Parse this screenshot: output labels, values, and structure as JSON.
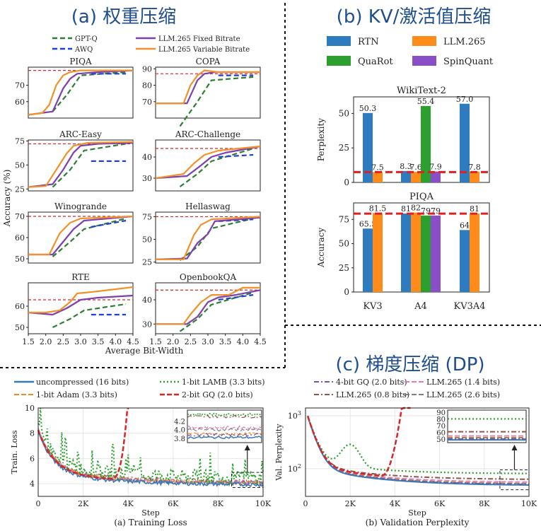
{
  "panels": {
    "a_title": "(a) 权重压缩",
    "b_title": "(b) KV/激活值压缩",
    "c_title": "(c) 梯度压缩 (DP)"
  },
  "colors": {
    "gptq": "#2e7d32",
    "awq": "#1f3fd6",
    "llm_fixed": "#7b3fb0",
    "llm_var": "#f0912a",
    "ref": "#e02020",
    "rtn": "#2f7bbf",
    "quarot": "#2ca02c",
    "spinquant": "#8a4fc7",
    "llm265": "#ff8c1a",
    "title_blue": "#1f4e8c"
  },
  "chart_data": [
    {
      "type": "line",
      "panel": "a",
      "legend": [
        "GPT-Q",
        "AWQ",
        "LLM.265 Fixed Bitrate",
        "LLM.265 Variable Bitrate"
      ],
      "xlabel": "Average Bit-Width",
      "ylabel": "Accuracy (%)",
      "xlim": [
        1.5,
        4.5
      ],
      "xticks": [
        "1.5",
        "2.0",
        "2.5",
        "3.0",
        "3.5",
        "4.0",
        "4.5"
      ],
      "subplots": [
        {
          "title": "PIQA",
          "ylim": [
            50,
            81
          ],
          "yticks": [
            60,
            70
          ],
          "ref": 79,
          "var": [
            [
              1.5,
              52
            ],
            [
              1.9,
              53
            ],
            [
              2.1,
              58
            ],
            [
              2.3,
              70
            ],
            [
              2.5,
              76
            ],
            [
              2.7,
              78
            ],
            [
              3.0,
              79
            ],
            [
              4.5,
              79
            ]
          ],
          "fixed": [
            [
              1.5,
              52
            ],
            [
              2.2,
              54
            ],
            [
              2.5,
              68
            ],
            [
              2.7,
              74
            ],
            [
              2.9,
              77
            ],
            [
              3.5,
              78
            ],
            [
              4.5,
              79
            ]
          ],
          "gptq": [
            [
              2.2,
              54
            ],
            [
              2.6,
              64
            ],
            [
              3.0,
              76
            ],
            [
              4.3,
              78
            ]
          ],
          "awq": [
            [
              3.3,
              77
            ],
            [
              4.3,
              77
            ]
          ]
        },
        {
          "title": "COPA",
          "ylim": [
            60,
            91
          ],
          "yticks": [
            70,
            80,
            90
          ],
          "ref": 87,
          "var": [
            [
              1.5,
              69
            ],
            [
              2.3,
              69
            ],
            [
              2.5,
              80
            ],
            [
              2.7,
              86
            ],
            [
              2.9,
              89
            ],
            [
              3.3,
              88
            ],
            [
              4.5,
              88
            ]
          ],
          "fixed": [
            [
              1.5,
              69
            ],
            [
              2.4,
              69
            ],
            [
              2.7,
              83
            ],
            [
              2.9,
              87
            ],
            [
              3.2,
              88
            ],
            [
              4.5,
              88
            ]
          ],
          "gptq": [
            [
              2.2,
              55
            ],
            [
              2.7,
              70
            ],
            [
              3.1,
              83
            ],
            [
              4.3,
              85
            ]
          ],
          "awq": [
            [
              3.3,
              86
            ],
            [
              4.3,
              86
            ]
          ]
        },
        {
          "title": "ARC-Easy",
          "ylim": [
            23,
            76
          ],
          "yticks": [
            25,
            50,
            75
          ],
          "ref": 72,
          "var": [
            [
              1.5,
              27
            ],
            [
              2.0,
              28
            ],
            [
              2.3,
              45
            ],
            [
              2.6,
              62
            ],
            [
              2.8,
              70
            ],
            [
              3.2,
              73
            ],
            [
              4.5,
              74
            ]
          ],
          "fixed": [
            [
              1.5,
              27
            ],
            [
              2.2,
              30
            ],
            [
              2.5,
              45
            ],
            [
              2.8,
              63
            ],
            [
              3.0,
              70
            ],
            [
              3.5,
              72
            ],
            [
              4.5,
              73
            ]
          ],
          "gptq": [
            [
              2.2,
              27
            ],
            [
              2.7,
              45
            ],
            [
              3.1,
              65
            ],
            [
              4.3,
              72
            ]
          ],
          "awq": [
            [
              3.3,
              54
            ],
            [
              4.3,
              54
            ]
          ]
        },
        {
          "title": "ARC-Challenge",
          "ylim": [
            24,
            48
          ],
          "yticks": [
            30,
            40
          ],
          "ref": 44,
          "var": [
            [
              1.5,
              30
            ],
            [
              2.3,
              32
            ],
            [
              2.6,
              37
            ],
            [
              2.9,
              41
            ],
            [
              3.3,
              43
            ],
            [
              4.5,
              45
            ]
          ],
          "fixed": [
            [
              1.5,
              30
            ],
            [
              2.4,
              31
            ],
            [
              2.8,
              36
            ],
            [
              3.1,
              40
            ],
            [
              3.5,
              42
            ],
            [
              4.5,
              45
            ]
          ],
          "gptq": [
            [
              2.2,
              26
            ],
            [
              2.7,
              32
            ],
            [
              3.1,
              38
            ],
            [
              4.3,
              44
            ]
          ],
          "awq": [
            [
              3.3,
              40
            ],
            [
              4.3,
              41
            ]
          ]
        },
        {
          "title": "Winogrande",
          "ylim": [
            48,
            72
          ],
          "yticks": [
            50,
            60,
            70
          ],
          "ref": 70,
          "var": [
            [
              1.5,
              52
            ],
            [
              2.1,
              52
            ],
            [
              2.4,
              62
            ],
            [
              2.7,
              67
            ],
            [
              3.0,
              69
            ],
            [
              4.5,
              70
            ]
          ],
          "fixed": [
            [
              1.5,
              52
            ],
            [
              2.2,
              52
            ],
            [
              2.5,
              58
            ],
            [
              2.8,
              64
            ],
            [
              3.1,
              68
            ],
            [
              4.5,
              70
            ]
          ],
          "gptq": [
            [
              2.2,
              51
            ],
            [
              2.7,
              58
            ],
            [
              3.1,
              64
            ],
            [
              4.3,
              69
            ]
          ],
          "awq": [
            [
              3.3,
              65
            ],
            [
              4.3,
              68
            ]
          ]
        },
        {
          "title": "Hellaswag",
          "ylim": [
            24,
            80
          ],
          "yticks": [
            25,
            50,
            75
          ],
          "ref": 75,
          "var": [
            [
              1.5,
              28
            ],
            [
              2.3,
              28
            ],
            [
              2.6,
              55
            ],
            [
              2.8,
              66
            ],
            [
              3.1,
              72
            ],
            [
              4.5,
              75
            ]
          ],
          "fixed": [
            [
              1.5,
              28
            ],
            [
              2.4,
              29
            ],
            [
              2.7,
              46
            ],
            [
              3.0,
              56
            ],
            [
              3.2,
              70
            ],
            [
              4.5,
              74
            ]
          ],
          "gptq": [
            [
              2.2,
              27
            ],
            [
              2.7,
              42
            ],
            [
              3.1,
              62
            ],
            [
              4.3,
              73
            ]
          ],
          "awq": [
            [
              3.3,
              70
            ],
            [
              4.3,
              72
            ]
          ]
        },
        {
          "title": "RTE",
          "ylim": [
            47,
            71
          ],
          "yticks": [
            50,
            60
          ],
          "ref": 63,
          "var": [
            [
              1.5,
              57
            ],
            [
              2.0,
              57
            ],
            [
              2.4,
              58
            ],
            [
              2.7,
              62
            ],
            [
              2.9,
              66
            ],
            [
              3.5,
              67
            ],
            [
              4.5,
              69
            ]
          ],
          "fixed": [
            [
              1.5,
              57
            ],
            [
              2.2,
              56
            ],
            [
              2.6,
              59
            ],
            [
              3.0,
              63
            ],
            [
              3.5,
              64
            ],
            [
              4.5,
              65
            ]
          ],
          "gptq": [
            [
              2.2,
              50
            ],
            [
              2.7,
              54
            ],
            [
              3.1,
              58
            ],
            [
              4.3,
              61
            ]
          ],
          "awq": [
            [
              3.3,
              56
            ],
            [
              4.3,
              56
            ]
          ]
        },
        {
          "title": "OpenbookQA",
          "ylim": [
            26,
            47
          ],
          "yticks": [
            30,
            40
          ],
          "ref": 44,
          "var": [
            [
              1.5,
              30
            ],
            [
              2.3,
              30
            ],
            [
              2.5,
              34
            ],
            [
              2.8,
              39
            ],
            [
              3.1,
              42
            ],
            [
              3.6,
              42
            ],
            [
              4.0,
              45
            ],
            [
              4.5,
              45
            ]
          ],
          "fixed": [
            [
              1.5,
              30
            ],
            [
              2.4,
              30
            ],
            [
              2.7,
              33
            ],
            [
              3.0,
              39
            ],
            [
              3.3,
              41
            ],
            [
              3.8,
              42
            ],
            [
              4.5,
              44
            ]
          ],
          "gptq": [
            [
              2.2,
              27
            ],
            [
              2.7,
              32
            ],
            [
              3.1,
              38
            ],
            [
              4.3,
              43
            ]
          ],
          "awq": [
            [
              3.3,
              40
            ],
            [
              4.3,
              42
            ]
          ]
        }
      ]
    },
    {
      "type": "bar",
      "panel": "b",
      "legend": [
        "RTN",
        "LLM.265",
        "QuaRot",
        "SpinQuant"
      ],
      "categories": [
        "KV3",
        "A4",
        "KV3A4"
      ],
      "charts": [
        {
          "title": "WikiText-2",
          "ylabel": "Perplexity",
          "ylim": [
            0,
            62
          ],
          "yticks": [
            0,
            25,
            50
          ],
          "ref": 7.5,
          "series": [
            {
              "name": "RTN",
              "values": [
                50.3,
                8.3,
                57.0
              ],
              "labels": [
                "50.3",
                "8.3",
                "57.0"
              ]
            },
            {
              "name": "LLM.265",
              "values": [
                7.5,
                7.6,
                7.8
              ],
              "labels": [
                "7.5",
                "7.6",
                "7.8"
              ]
            },
            {
              "name": "QuaRot",
              "values": [
                null,
                55.4,
                null
              ],
              "labels": [
                "",
                "55.4",
                ""
              ]
            },
            {
              "name": "SpinQuant",
              "values": [
                null,
                7.9,
                null
              ],
              "labels": [
                "",
                "7.9",
                ""
              ]
            }
          ]
        },
        {
          "title": "PIQA",
          "ylabel": "Accuracy",
          "ylim": [
            0,
            92
          ],
          "yticks": [
            0,
            25,
            50,
            75
          ],
          "ref": 81,
          "series": [
            {
              "name": "RTN",
              "values": [
                65.5,
                81,
                64
              ],
              "labels": [
                "65.5",
                "81",
                "64"
              ]
            },
            {
              "name": "LLM.265",
              "values": [
                81.5,
                82,
                81
              ],
              "labels": [
                "81.5",
                "82",
                "81"
              ]
            },
            {
              "name": "QuaRot",
              "values": [
                null,
                79,
                null
              ],
              "labels": [
                "",
                "79",
                ""
              ]
            },
            {
              "name": "SpinQuant",
              "values": [
                null,
                79,
                null
              ],
              "labels": [
                "",
                "79",
                ""
              ]
            }
          ]
        }
      ]
    },
    {
      "type": "line",
      "panel": "c",
      "legend": [
        "uncompressed (16 bits)",
        "1-bit LAMB (3.3 bits)",
        "4-bit GQ (2.0 bits)",
        "LLM.265 (1.4 bits)",
        "1-bit Adam (3.3 bits)",
        "2-bit GQ (2.0 bits)",
        "LLM.265 (0.8 bits)",
        "LLM.265 (2.6 bits)"
      ],
      "xticks": [
        "0",
        "2K",
        "4K",
        "6K",
        "8K",
        "10K"
      ],
      "xlim": [
        0,
        10000
      ],
      "subplots": [
        {
          "caption": "(a) Training Loss",
          "xlabel": "Step",
          "ylabel": "Train. Loss",
          "ylim": [
            3,
            10
          ],
          "yticks": [
            4,
            6,
            8,
            10
          ],
          "inset_yticks": [
            "4.2",
            "4.0",
            "3.8"
          ]
        },
        {
          "caption": "(b) Validation Perplexity",
          "xlabel": "Step",
          "ylabel": "Val. Perplexity",
          "log": true,
          "ylim": [
            30,
            1400
          ],
          "yticks_labels": [
            "10^2",
            "10^3"
          ],
          "inset_yticks": [
            "90",
            "80",
            "70",
            "60",
            "50"
          ]
        }
      ]
    }
  ]
}
